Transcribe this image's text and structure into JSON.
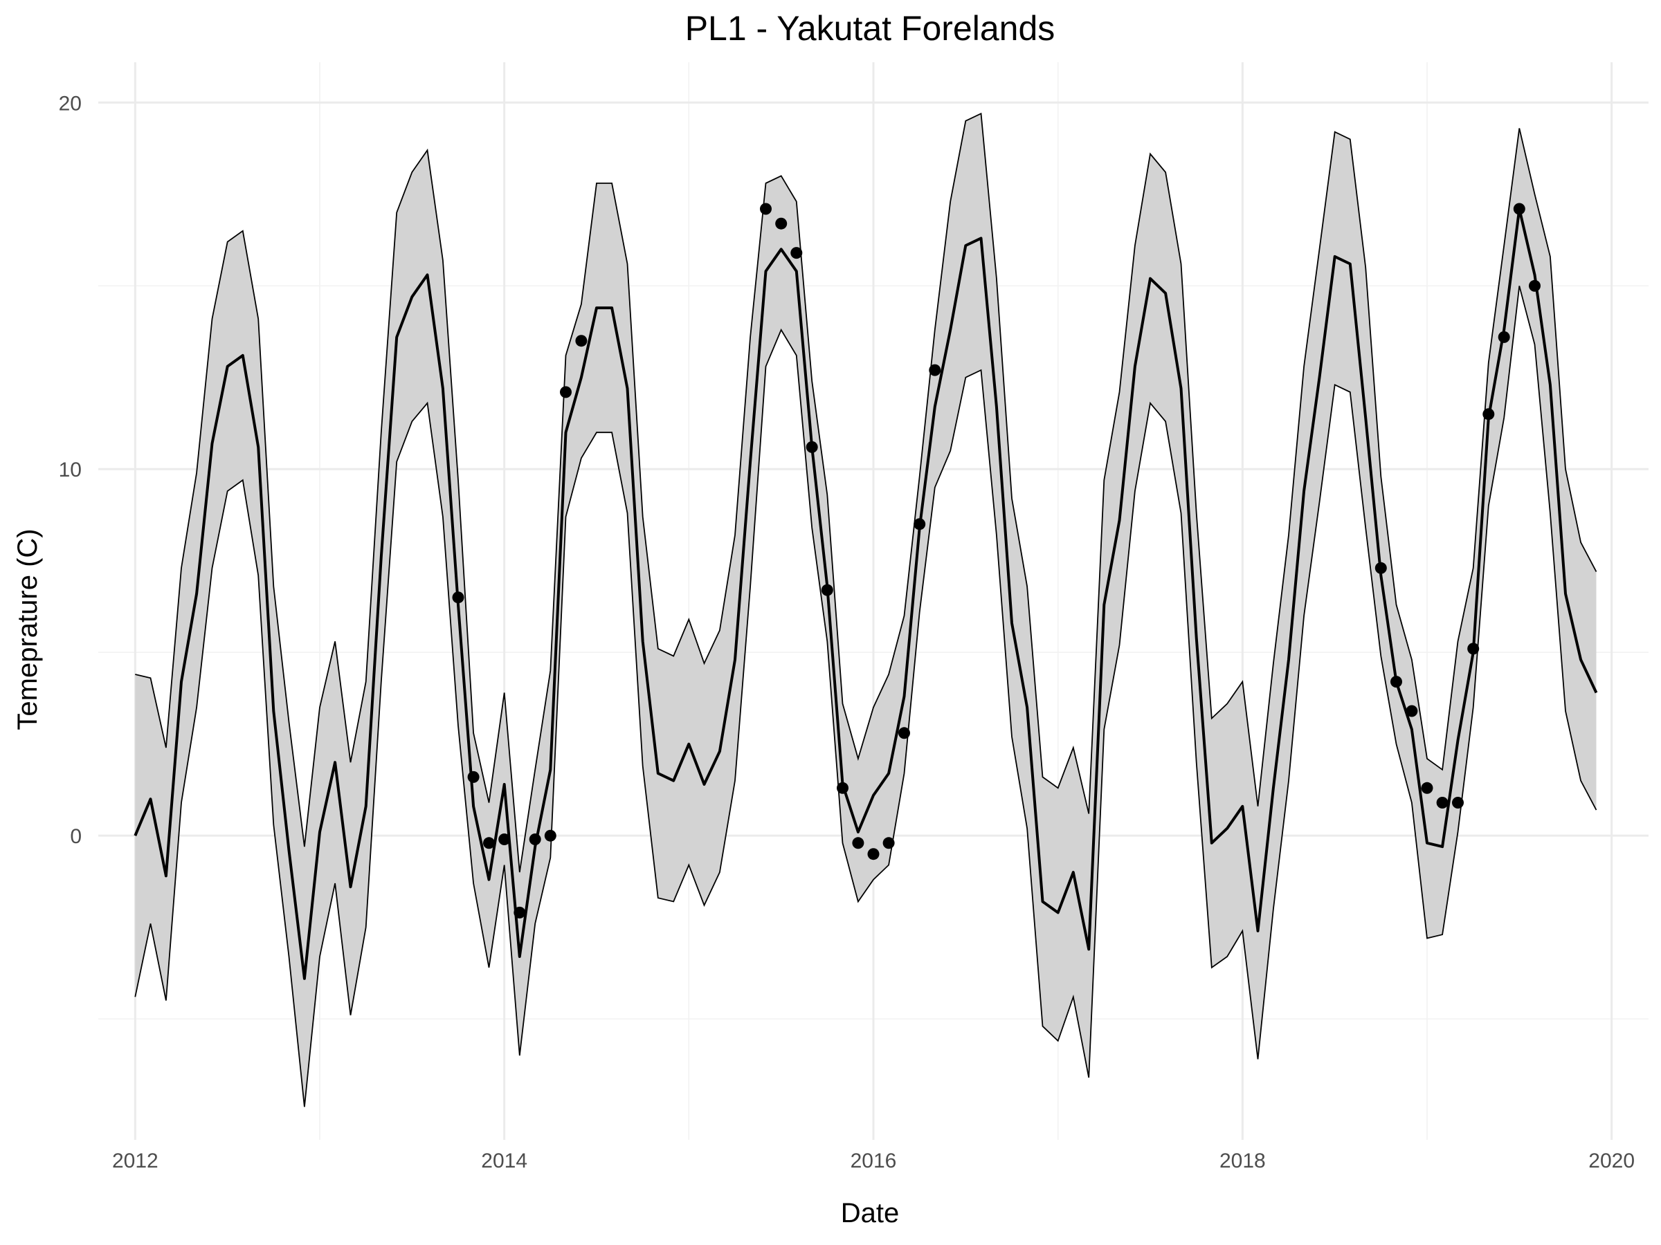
{
  "chart_data": {
    "type": "line",
    "title": "PL1 - Yakutat Forelands",
    "xlabel": "Date",
    "ylabel": "Temeprature (C)",
    "xlim": [
      2011.8,
      2020.2
    ],
    "ylim": [
      -8.3,
      21.1
    ],
    "x_ticks": [
      2012,
      2014,
      2016,
      2018,
      2020
    ],
    "x_tick_labels": [
      "2012",
      "2014",
      "2016",
      "2018",
      "2020"
    ],
    "y_ticks": [
      0,
      10,
      20
    ],
    "y_tick_labels": [
      "0",
      "10",
      "20"
    ],
    "grid": true,
    "legend": "none",
    "x": [
      2012.0,
      2012.083,
      2012.167,
      2012.25,
      2012.333,
      2012.417,
      2012.5,
      2012.583,
      2012.667,
      2012.75,
      2012.833,
      2012.917,
      2013.0,
      2013.083,
      2013.167,
      2013.25,
      2013.333,
      2013.417,
      2013.5,
      2013.583,
      2013.667,
      2013.75,
      2013.833,
      2013.917,
      2014.0,
      2014.083,
      2014.167,
      2014.25,
      2014.333,
      2014.417,
      2014.5,
      2014.583,
      2014.667,
      2014.75,
      2014.833,
      2014.917,
      2015.0,
      2015.083,
      2015.167,
      2015.25,
      2015.333,
      2015.417,
      2015.5,
      2015.583,
      2015.667,
      2015.75,
      2015.833,
      2015.917,
      2016.0,
      2016.083,
      2016.167,
      2016.25,
      2016.333,
      2016.417,
      2016.5,
      2016.583,
      2016.667,
      2016.75,
      2016.833,
      2016.917,
      2017.0,
      2017.083,
      2017.167,
      2017.25,
      2017.333,
      2017.417,
      2017.5,
      2017.583,
      2017.667,
      2017.75,
      2017.833,
      2017.917,
      2018.0,
      2018.083,
      2018.167,
      2018.25,
      2018.333,
      2018.417,
      2018.5,
      2018.583,
      2018.667,
      2018.75,
      2018.833,
      2018.917,
      2019.0,
      2019.083,
      2019.167,
      2019.25,
      2019.333,
      2019.417,
      2019.5,
      2019.583,
      2019.667,
      2019.75,
      2019.833,
      2019.917
    ],
    "series": [
      {
        "role": "mean",
        "values": [
          0.0,
          1.0,
          -1.1,
          4.2,
          6.6,
          10.7,
          12.8,
          13.1,
          10.6,
          3.4,
          -0.4,
          -3.9,
          0.1,
          2.0,
          -1.4,
          0.8,
          7.6,
          13.6,
          14.7,
          15.3,
          12.2,
          6.3,
          0.8,
          -1.2,
          1.4,
          -3.3,
          -0.3,
          1.8,
          11.0,
          12.5,
          14.4,
          14.4,
          12.2,
          5.3,
          1.7,
          1.5,
          2.5,
          1.4,
          2.3,
          4.8,
          10.2,
          15.4,
          16.0,
          15.4,
          10.6,
          6.8,
          1.4,
          0.1,
          1.1,
          1.7,
          3.8,
          8.4,
          11.7,
          13.8,
          16.1,
          16.3,
          11.7,
          5.8,
          3.5,
          -1.8,
          -2.1,
          -1.0,
          -3.1,
          6.3,
          8.6,
          12.8,
          15.2,
          14.8,
          12.2,
          5.4,
          -0.2,
          0.2,
          0.8,
          -2.6,
          1.3,
          4.8,
          9.4,
          12.5,
          15.8,
          15.6,
          11.4,
          7.1,
          4.2,
          2.9,
          -0.2,
          -0.3,
          2.6,
          5.0,
          11.4,
          13.8,
          17.1,
          15.3,
          12.3,
          6.6,
          4.8,
          3.9
        ]
      },
      {
        "role": "upper",
        "values": [
          4.4,
          4.3,
          2.4,
          7.3,
          9.9,
          14.1,
          16.2,
          16.5,
          14.1,
          6.8,
          3.1,
          -0.3,
          3.5,
          5.3,
          2.0,
          4.2,
          11.0,
          17.0,
          18.1,
          18.7,
          15.7,
          9.7,
          2.8,
          0.9,
          3.9,
          -1.0,
          1.8,
          4.5,
          13.1,
          14.5,
          17.8,
          17.8,
          15.6,
          8.7,
          5.1,
          4.9,
          5.9,
          4.7,
          5.6,
          8.2,
          13.6,
          17.8,
          18.0,
          17.3,
          12.4,
          9.3,
          3.6,
          2.1,
          3.5,
          4.4,
          6.0,
          9.8,
          13.8,
          17.3,
          19.5,
          19.7,
          15.2,
          9.2,
          6.8,
          1.6,
          1.3,
          2.4,
          0.6,
          9.7,
          12.1,
          16.1,
          18.6,
          18.1,
          15.6,
          8.8,
          3.2,
          3.6,
          4.2,
          0.8,
          4.7,
          8.2,
          12.8,
          16.0,
          19.2,
          19.0,
          15.5,
          9.8,
          6.3,
          4.8,
          2.1,
          1.8,
          5.3,
          7.3,
          12.9,
          16.1,
          19.3,
          17.5,
          15.8,
          10.0,
          8.0,
          7.2
        ]
      },
      {
        "role": "lower",
        "values": [
          -4.4,
          -2.4,
          -4.5,
          0.9,
          3.5,
          7.3,
          9.4,
          9.7,
          7.1,
          0.3,
          -3.3,
          -7.4,
          -3.3,
          -1.3,
          -4.9,
          -2.5,
          4.2,
          10.2,
          11.3,
          11.8,
          8.7,
          3.0,
          -1.3,
          -3.6,
          -0.8,
          -6.0,
          -2.4,
          -0.6,
          8.7,
          10.3,
          11.0,
          11.0,
          8.8,
          1.9,
          -1.7,
          -1.8,
          -0.8,
          -1.9,
          -1.0,
          1.5,
          6.8,
          12.8,
          13.8,
          13.1,
          8.4,
          5.3,
          -0.2,
          -1.8,
          -1.2,
          -0.8,
          1.7,
          6.1,
          9.5,
          10.5,
          12.5,
          12.7,
          8.2,
          2.7,
          0.2,
          -5.2,
          -5.6,
          -4.4,
          -6.6,
          2.9,
          5.2,
          9.4,
          11.8,
          11.3,
          8.8,
          2.0,
          -3.6,
          -3.3,
          -2.6,
          -6.1,
          -2.0,
          1.5,
          6.0,
          9.1,
          12.3,
          12.1,
          8.4,
          4.9,
          2.5,
          0.9,
          -2.8,
          -2.7,
          0.1,
          3.5,
          9.0,
          11.4,
          15.0,
          13.4,
          8.8,
          3.4,
          1.5,
          0.7
        ]
      },
      {
        "role": "observed",
        "type": "scatter",
        "x": [
          2013.75,
          2013.833,
          2013.917,
          2014.0,
          2014.083,
          2014.167,
          2014.25,
          2014.333,
          2014.417,
          2015.417,
          2015.5,
          2015.583,
          2015.667,
          2015.75,
          2015.833,
          2015.917,
          2016.0,
          2016.083,
          2016.167,
          2016.25,
          2016.333,
          2018.75,
          2018.833,
          2018.917,
          2019.0,
          2019.083,
          2019.167,
          2019.25,
          2019.333,
          2019.417,
          2019.5,
          2019.583
        ],
        "values": [
          6.5,
          1.6,
          -0.2,
          -0.1,
          -2.1,
          -0.1,
          0.0,
          12.1,
          13.5,
          17.1,
          16.7,
          15.9,
          10.6,
          6.7,
          1.3,
          -0.2,
          -0.5,
          -0.2,
          2.8,
          8.5,
          12.7,
          7.3,
          4.2,
          3.4,
          1.3,
          0.9,
          0.9,
          5.1,
          11.5,
          13.6,
          17.1,
          15.0
        ]
      }
    ]
  }
}
